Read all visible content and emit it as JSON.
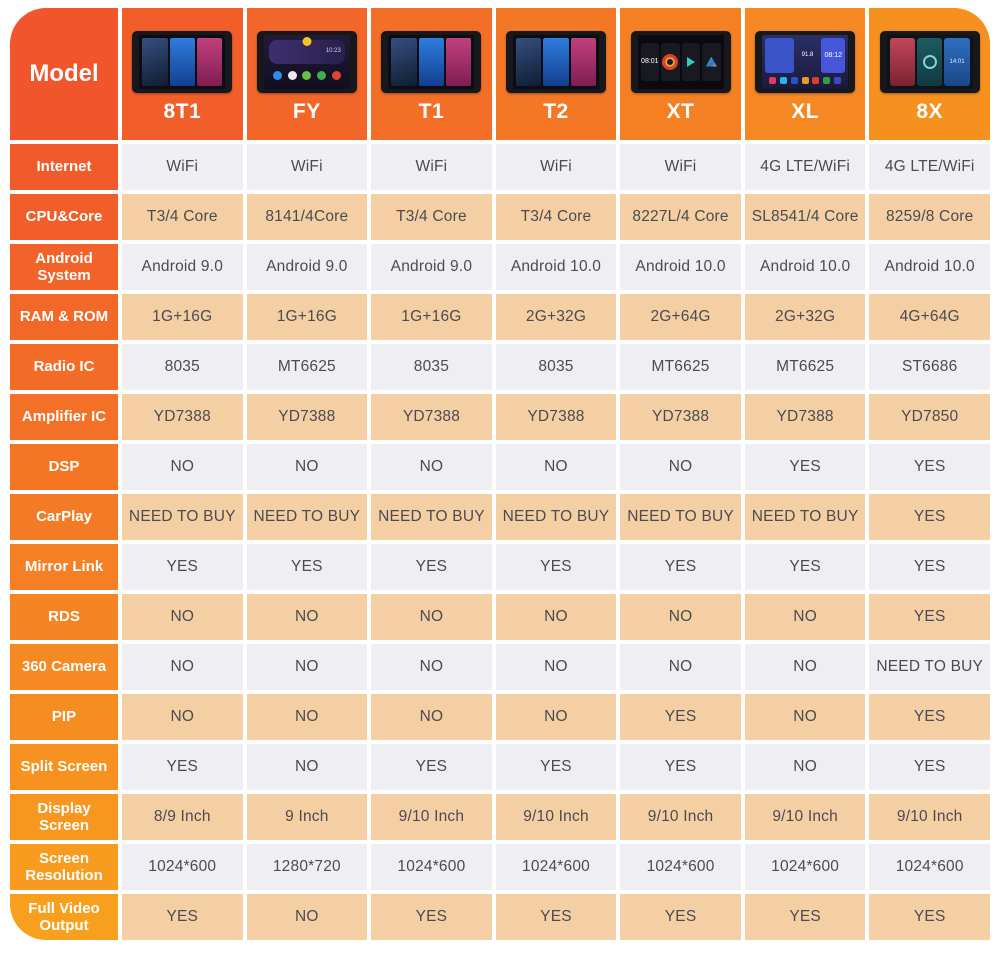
{
  "table": {
    "corner_label": "Model",
    "models": [
      {
        "name": "8T1",
        "device": "home-tiles"
      },
      {
        "name": "FY",
        "device": "launcher-icons",
        "screen_time": "10:23"
      },
      {
        "name": "T1",
        "device": "home-tiles"
      },
      {
        "name": "T2",
        "device": "home-tiles"
      },
      {
        "name": "XT",
        "device": "card-widgets",
        "screen_time": "08:01"
      },
      {
        "name": "XL",
        "device": "blue-launcher",
        "screen_time": "08:12",
        "screen_freq": "91.8"
      },
      {
        "name": "8X",
        "device": "triple-tiles",
        "screen_time": "14:01"
      }
    ],
    "rows": [
      {
        "label": "Internet",
        "values": [
          "WiFi",
          "WiFi",
          "WiFi",
          "WiFi",
          "WiFi",
          "4G LTE/WiFi",
          "4G LTE/WiFi"
        ]
      },
      {
        "label": "CPU&Core",
        "values": [
          "T3/4 Core",
          "8141/4Core",
          "T3/4 Core",
          "T3/4 Core",
          "8227L/4 Core",
          "SL8541/4 Core",
          "8259/8 Core"
        ]
      },
      {
        "label": "Android System",
        "values": [
          "Android 9.0",
          "Android 9.0",
          "Android 9.0",
          "Android 10.0",
          "Android 10.0",
          "Android 10.0",
          "Android 10.0"
        ]
      },
      {
        "label": "RAM & ROM",
        "values": [
          "1G+16G",
          "1G+16G",
          "1G+16G",
          "2G+32G",
          "2G+64G",
          "2G+32G",
          "4G+64G"
        ]
      },
      {
        "label": "Radio IC",
        "values": [
          "8035",
          "MT6625",
          "8035",
          "8035",
          "MT6625",
          "MT6625",
          "ST6686"
        ]
      },
      {
        "label": "Amplifier IC",
        "values": [
          "YD7388",
          "YD7388",
          "YD7388",
          "YD7388",
          "YD7388",
          "YD7388",
          "YD7850"
        ]
      },
      {
        "label": "DSP",
        "values": [
          "NO",
          "NO",
          "NO",
          "NO",
          "NO",
          "YES",
          "YES"
        ]
      },
      {
        "label": "CarPlay",
        "values": [
          "NEED TO BUY",
          "NEED TO BUY",
          "NEED TO BUY",
          "NEED TO BUY",
          "NEED TO BUY",
          "NEED TO BUY",
          "YES"
        ]
      },
      {
        "label": "Mirror Link",
        "values": [
          "YES",
          "YES",
          "YES",
          "YES",
          "YES",
          "YES",
          "YES"
        ]
      },
      {
        "label": "RDS",
        "values": [
          "NO",
          "NO",
          "NO",
          "NO",
          "NO",
          "NO",
          "YES"
        ]
      },
      {
        "label": "360 Camera",
        "values": [
          "NO",
          "NO",
          "NO",
          "NO",
          "NO",
          "NO",
          "NEED TO BUY"
        ]
      },
      {
        "label": "PIP",
        "values": [
          "NO",
          "NO",
          "NO",
          "NO",
          "YES",
          "NO",
          "YES"
        ]
      },
      {
        "label": "Split Screen",
        "values": [
          "YES",
          "NO",
          "YES",
          "YES",
          "YES",
          "NO",
          "YES"
        ]
      },
      {
        "label": "Display Screen",
        "values": [
          "8/9 Inch",
          "9 Inch",
          "9/10 Inch",
          "9/10 Inch",
          "9/10 Inch",
          "9/10 Inch",
          "9/10 Inch"
        ]
      },
      {
        "label": "Screen Resolution",
        "values": [
          "1024*600",
          "1280*720",
          "1024*600",
          "1024*600",
          "1024*600",
          "1024*600",
          "1024*600"
        ]
      },
      {
        "label": "Full Video Output",
        "values": [
          "YES",
          "NO",
          "YES",
          "YES",
          "YES",
          "YES",
          "YES"
        ]
      }
    ]
  },
  "colors": {
    "label_gradient_top": "#f0552c",
    "label_gradient_bottom": "#f8a01d",
    "header_gradient_left": "#f0552c",
    "header_gradient_right": "#f69120",
    "row_alt_gray": "#efeef2",
    "row_alt_peach": "#f3cfa3",
    "cell_text": "#4c4b50",
    "label_text": "#ffffff"
  }
}
